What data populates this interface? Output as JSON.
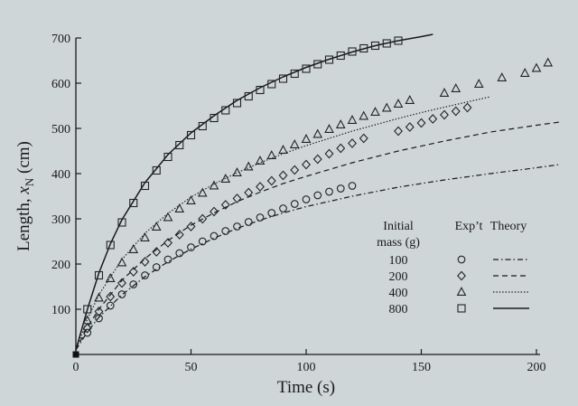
{
  "chart_data": {
    "type": "scatter",
    "title": "",
    "xlabel": "Time (s)",
    "ylabel_main": "Length, ",
    "ylabel_var": "x",
    "ylabel_sub": "N",
    "ylabel_unit": " (cm)",
    "xlim": [
      0,
      200
    ],
    "ylim": [
      0,
      700
    ],
    "xticks": [
      0,
      50,
      100,
      150,
      200
    ],
    "yticks": [
      100,
      200,
      300,
      400,
      500,
      600,
      700
    ],
    "grid": false,
    "legend_position": "right",
    "legend": {
      "col1_header_line1": "Initial",
      "col1_header_line2": "mass (g)",
      "col2_header": "Exp’t",
      "col3_header": "Theory"
    },
    "series": [
      {
        "name": "100",
        "marker": "circle",
        "theory_style": "dash-dot",
        "experiment": [
          [
            5,
            48
          ],
          [
            10,
            80
          ],
          [
            15,
            108
          ],
          [
            20,
            133
          ],
          [
            25,
            155
          ],
          [
            30,
            175
          ],
          [
            35,
            193
          ],
          [
            40,
            210
          ],
          [
            45,
            224
          ],
          [
            50,
            237
          ],
          [
            55,
            250
          ],
          [
            60,
            262
          ],
          [
            65,
            273
          ],
          [
            70,
            283
          ],
          [
            75,
            293
          ],
          [
            80,
            303
          ],
          [
            85,
            313
          ],
          [
            90,
            323
          ],
          [
            95,
            333
          ],
          [
            100,
            343
          ],
          [
            105,
            352
          ],
          [
            110,
            360
          ],
          [
            115,
            367
          ],
          [
            120,
            373
          ]
        ],
        "theory": [
          [
            0,
            10
          ],
          [
            5,
            50
          ],
          [
            10,
            82
          ],
          [
            20,
            132
          ],
          [
            30,
            172
          ],
          [
            40,
            205
          ],
          [
            50,
            233
          ],
          [
            60,
            257
          ],
          [
            70,
            279
          ],
          [
            80,
            297
          ],
          [
            90,
            313
          ],
          [
            100,
            327
          ],
          [
            120,
            350
          ],
          [
            140,
            370
          ],
          [
            160,
            386
          ],
          [
            180,
            400
          ],
          [
            200,
            413
          ],
          [
            210,
            420
          ]
        ]
      },
      {
        "name": "200",
        "marker": "diamond",
        "theory_style": "dashed",
        "experiment": [
          [
            5,
            58
          ],
          [
            10,
            95
          ],
          [
            15,
            128
          ],
          [
            20,
            158
          ],
          [
            25,
            183
          ],
          [
            30,
            205
          ],
          [
            35,
            227
          ],
          [
            40,
            247
          ],
          [
            45,
            265
          ],
          [
            50,
            283
          ],
          [
            55,
            300
          ],
          [
            60,
            316
          ],
          [
            65,
            331
          ],
          [
            70,
            345
          ],
          [
            75,
            358
          ],
          [
            80,
            371
          ],
          [
            85,
            384
          ],
          [
            90,
            396
          ],
          [
            95,
            408
          ],
          [
            100,
            420
          ],
          [
            105,
            432
          ],
          [
            110,
            444
          ],
          [
            115,
            456
          ],
          [
            120,
            467
          ],
          [
            125,
            478
          ],
          [
            140,
            494
          ],
          [
            145,
            503
          ],
          [
            150,
            512
          ],
          [
            155,
            521
          ],
          [
            160,
            530
          ],
          [
            165,
            538
          ],
          [
            170,
            546
          ]
        ],
        "theory": [
          [
            0,
            10
          ],
          [
            5,
            60
          ],
          [
            10,
            100
          ],
          [
            20,
            164
          ],
          [
            30,
            212
          ],
          [
            40,
            252
          ],
          [
            50,
            286
          ],
          [
            60,
            313
          ],
          [
            70,
            338
          ],
          [
            80,
            359
          ],
          [
            90,
            378
          ],
          [
            100,
            394
          ],
          [
            120,
            424
          ],
          [
            140,
            450
          ],
          [
            160,
            472
          ],
          [
            180,
            492
          ],
          [
            200,
            507
          ],
          [
            210,
            514
          ]
        ]
      },
      {
        "name": "400",
        "marker": "triangle",
        "theory_style": "dotted",
        "experiment": [
          [
            5,
            75
          ],
          [
            10,
            125
          ],
          [
            15,
            168
          ],
          [
            20,
            203
          ],
          [
            25,
            232
          ],
          [
            30,
            258
          ],
          [
            35,
            282
          ],
          [
            40,
            303
          ],
          [
            45,
            322
          ],
          [
            50,
            340
          ],
          [
            55,
            357
          ],
          [
            60,
            373
          ],
          [
            65,
            388
          ],
          [
            70,
            402
          ],
          [
            75,
            415
          ],
          [
            80,
            428
          ],
          [
            85,
            440
          ],
          [
            90,
            452
          ],
          [
            95,
            464
          ],
          [
            100,
            476
          ],
          [
            105,
            487
          ],
          [
            110,
            498
          ],
          [
            115,
            508
          ],
          [
            120,
            518
          ],
          [
            125,
            527
          ],
          [
            130,
            536
          ],
          [
            135,
            545
          ],
          [
            140,
            554
          ],
          [
            145,
            562
          ],
          [
            160,
            578
          ],
          [
            165,
            588
          ],
          [
            175,
            598
          ],
          [
            185,
            612
          ],
          [
            195,
            622
          ],
          [
            200,
            633
          ],
          [
            205,
            645
          ]
        ],
        "theory": [
          [
            0,
            10
          ],
          [
            5,
            78
          ],
          [
            10,
            132
          ],
          [
            20,
            210
          ],
          [
            30,
            268
          ],
          [
            40,
            312
          ],
          [
            50,
            348
          ],
          [
            60,
            377
          ],
          [
            70,
            402
          ],
          [
            80,
            424
          ],
          [
            90,
            444
          ],
          [
            100,
            462
          ],
          [
            110,
            478
          ],
          [
            120,
            494
          ],
          [
            130,
            508
          ],
          [
            140,
            522
          ],
          [
            150,
            535
          ],
          [
            160,
            547
          ],
          [
            180,
            570
          ]
        ]
      },
      {
        "name": "800",
        "marker": "square",
        "theory_style": "solid",
        "experiment": [
          [
            5,
            100
          ],
          [
            10,
            175
          ],
          [
            15,
            242
          ],
          [
            20,
            292
          ],
          [
            25,
            335
          ],
          [
            30,
            373
          ],
          [
            35,
            407
          ],
          [
            40,
            437
          ],
          [
            45,
            463
          ],
          [
            50,
            485
          ],
          [
            55,
            505
          ],
          [
            60,
            523
          ],
          [
            65,
            540
          ],
          [
            70,
            556
          ],
          [
            75,
            571
          ],
          [
            80,
            585
          ],
          [
            85,
            598
          ],
          [
            90,
            610
          ],
          [
            95,
            621
          ],
          [
            100,
            632
          ],
          [
            105,
            642
          ],
          [
            110,
            652
          ],
          [
            115,
            661
          ],
          [
            120,
            670
          ],
          [
            125,
            677
          ],
          [
            130,
            683
          ],
          [
            135,
            688
          ],
          [
            140,
            694
          ]
        ],
        "theory": [
          [
            0,
            10
          ],
          [
            5,
            100
          ],
          [
            10,
            180
          ],
          [
            15,
            245
          ],
          [
            20,
            298
          ],
          [
            30,
            380
          ],
          [
            40,
            442
          ],
          [
            50,
            490
          ],
          [
            60,
            528
          ],
          [
            70,
            562
          ],
          [
            80,
            590
          ],
          [
            90,
            614
          ],
          [
            100,
            635
          ],
          [
            110,
            653
          ],
          [
            120,
            669
          ],
          [
            130,
            683
          ],
          [
            140,
            694
          ],
          [
            150,
            703
          ],
          [
            155,
            708
          ]
        ]
      }
    ]
  }
}
